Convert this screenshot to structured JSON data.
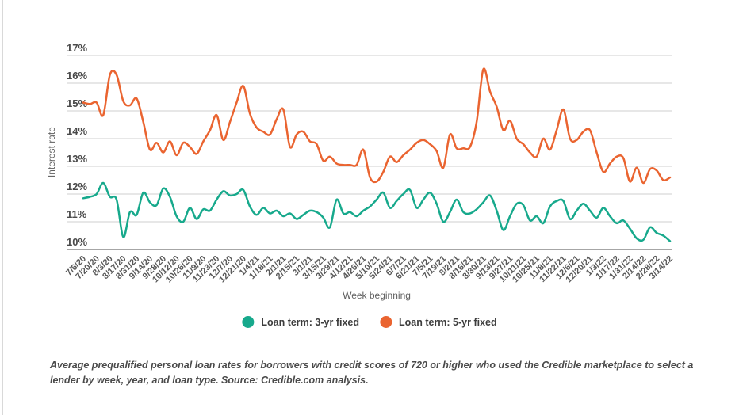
{
  "chart_data": {
    "type": "line",
    "title": "",
    "xlabel": "Week beginning",
    "ylabel": "Interest rate",
    "ylim": [
      10,
      17
    ],
    "grid": true,
    "legend_position": "bottom",
    "y_tick_labels": [
      "17%",
      "16%",
      "15%",
      "14%",
      "13%",
      "12%",
      "11%",
      "10%"
    ],
    "points_per_tick": 2,
    "x_tick_labels": [
      "7/6/20",
      "7/20/20",
      "8/3/20",
      "8/17/20",
      "8/31/20",
      "9/14/20",
      "9/28/20",
      "10/12/20",
      "10/26/20",
      "11/9/20",
      "11/23/20",
      "12/7/20",
      "12/21/20",
      "1/4/21",
      "1/18/21",
      "2/1/21",
      "2/15/21",
      "3/1/21",
      "3/15/21",
      "3/29/21",
      "4/12/21",
      "4/26/21",
      "5/10/21",
      "5/24/21",
      "6/7/21",
      "6/21/21",
      "7/5/21",
      "7/19/21",
      "8/2/21",
      "8/16/21",
      "8/30/21",
      "9/13/21",
      "9/27/21",
      "10/11/21",
      "10/25/21",
      "11/8/21",
      "11/22/21",
      "12/6/21",
      "12/20/21",
      "1/3/22",
      "1/17/22",
      "1/31/22",
      "2/14/22",
      "2/28/22",
      "3/14/22"
    ],
    "series": [
      {
        "name": "Loan term: 3-yr fixed",
        "color": "#17A98C",
        "values": [
          11.85,
          11.9,
          12.0,
          12.4,
          11.9,
          11.8,
          10.45,
          11.35,
          11.25,
          12.05,
          11.7,
          11.6,
          12.2,
          11.9,
          11.2,
          11.0,
          11.5,
          11.1,
          11.45,
          11.4,
          11.8,
          12.1,
          11.95,
          12.0,
          12.15,
          11.55,
          11.25,
          11.5,
          11.3,
          11.4,
          11.2,
          11.3,
          11.1,
          11.25,
          11.4,
          11.35,
          11.15,
          10.8,
          11.8,
          11.3,
          11.35,
          11.2,
          11.4,
          11.55,
          11.8,
          12.05,
          11.5,
          11.75,
          12.0,
          12.15,
          11.5,
          11.8,
          12.05,
          11.65,
          11.0,
          11.35,
          11.8,
          11.35,
          11.3,
          11.45,
          11.7,
          11.95,
          11.4,
          10.7,
          11.2,
          11.65,
          11.6,
          11.05,
          11.2,
          10.95,
          11.55,
          11.75,
          11.75,
          11.1,
          11.4,
          11.65,
          11.4,
          11.15,
          11.5,
          11.2,
          10.95,
          11.05,
          10.75,
          10.4,
          10.35,
          10.8,
          10.6,
          10.5,
          10.3
        ]
      },
      {
        "name": "Loan term: 5-yr fixed",
        "color": "#EA6430",
        "values": [
          15.3,
          15.25,
          15.3,
          14.85,
          16.3,
          16.3,
          15.35,
          15.2,
          15.45,
          14.6,
          13.6,
          13.85,
          13.5,
          13.9,
          13.4,
          13.85,
          13.7,
          13.45,
          13.9,
          14.3,
          14.85,
          13.95,
          14.6,
          15.3,
          15.9,
          14.9,
          14.4,
          14.25,
          14.15,
          14.7,
          15.05,
          13.7,
          14.15,
          14.25,
          13.9,
          13.8,
          13.2,
          13.35,
          13.1,
          13.05,
          13.05,
          13.05,
          13.6,
          12.6,
          12.45,
          12.8,
          13.35,
          13.15,
          13.4,
          13.6,
          13.85,
          13.95,
          13.8,
          13.55,
          12.95,
          14.15,
          13.65,
          13.65,
          13.7,
          14.6,
          16.5,
          15.7,
          15.15,
          14.3,
          14.65,
          14.0,
          13.8,
          13.5,
          13.35,
          14.0,
          13.6,
          14.3,
          15.05,
          14.0,
          13.95,
          14.25,
          14.3,
          13.5,
          12.8,
          13.1,
          13.35,
          13.3,
          12.45,
          12.95,
          12.4,
          12.9,
          12.85,
          12.5,
          12.6
        ]
      }
    ],
    "colors": {
      "gridline": "#cfcfcf",
      "baseline": "#a6a6a6",
      "tick_text": "#4a4a4a"
    }
  },
  "caption": {
    "text": "Average prequalified personal loan rates for borrowers with credit scores of 720 or higher who used the Credible marketplace to select a lender by week, year, and loan type. Source: Credible.com analysis."
  }
}
